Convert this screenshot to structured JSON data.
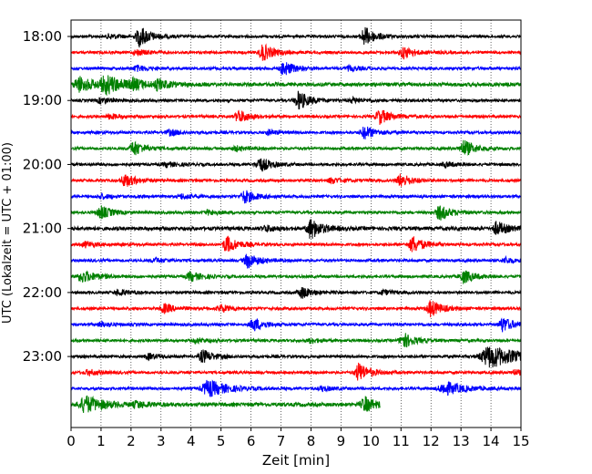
{
  "chart_data": {
    "type": "line",
    "title": "",
    "xlabel": "Zeit  [min]",
    "ylabel": "UTC (Lokalzeit = UTC + 01:00)",
    "xlim": [
      0,
      15
    ],
    "x_ticks": [
      0,
      1,
      2,
      3,
      4,
      5,
      6,
      7,
      8,
      9,
      10,
      11,
      12,
      13,
      14,
      15
    ],
    "x_tick_labels": [
      "0",
      "1",
      "2",
      "3",
      "4",
      "5",
      "6",
      "7",
      "8",
      "9",
      "10",
      "11",
      "12",
      "13",
      "14",
      "15"
    ],
    "y_tick_labels": [
      "18:00",
      "19:00",
      "20:00",
      "21:00",
      "22:00",
      "23:00"
    ],
    "grid": "vertical dotted lines at each minute",
    "row_interval_min": 15,
    "colors": [
      "#000000",
      "#ff0000",
      "#0000ff",
      "#008000"
    ],
    "series": [
      {
        "start": "18:00",
        "color": "#000000",
        "noise": 1.5,
        "events": [
          {
            "t": 2.3,
            "a": 11
          },
          {
            "t": 9.8,
            "a": 10
          },
          {
            "t": 1.3,
            "a": 2.5
          }
        ]
      },
      {
        "start": "18:15",
        "color": "#ff0000",
        "noise": 1.5,
        "events": [
          {
            "t": 6.4,
            "a": 9
          },
          {
            "t": 11.1,
            "a": 6
          },
          {
            "t": 2.2,
            "a": 3
          }
        ]
      },
      {
        "start": "18:30",
        "color": "#0000ff",
        "noise": 1.5,
        "events": [
          {
            "t": 7.1,
            "a": 8
          },
          {
            "t": 2.2,
            "a": 3
          },
          {
            "t": 9.3,
            "a": 2.5
          }
        ]
      },
      {
        "start": "18:45",
        "color": "#008000",
        "noise": 2,
        "events": [
          {
            "t": 0.3,
            "a": 8,
            "w": 0.5
          },
          {
            "t": 1.2,
            "a": 9,
            "w": 0.6
          },
          {
            "t": 2.1,
            "a": 4
          },
          {
            "t": 2.9,
            "a": 5
          }
        ]
      },
      {
        "start": "19:00",
        "color": "#000000",
        "noise": 1.5,
        "events": [
          {
            "t": 7.6,
            "a": 10
          },
          {
            "t": 1.0,
            "a": 3
          },
          {
            "t": 9.4,
            "a": 2.5
          }
        ]
      },
      {
        "start": "19:15",
        "color": "#ff0000",
        "noise": 1.5,
        "events": [
          {
            "t": 5.6,
            "a": 7
          },
          {
            "t": 10.3,
            "a": 8
          },
          {
            "t": 1.3,
            "a": 2.5
          }
        ]
      },
      {
        "start": "19:30",
        "color": "#0000ff",
        "noise": 1.5,
        "events": [
          {
            "t": 9.8,
            "a": 7
          },
          {
            "t": 3.3,
            "a": 3
          },
          {
            "t": 6.6,
            "a": 2.5
          }
        ]
      },
      {
        "start": "19:45",
        "color": "#008000",
        "noise": 1.5,
        "events": [
          {
            "t": 2.1,
            "a": 8
          },
          {
            "t": 13.1,
            "a": 9
          },
          {
            "t": 5.5,
            "a": 2.5
          }
        ]
      },
      {
        "start": "20:00",
        "color": "#000000",
        "noise": 1.5,
        "events": [
          {
            "t": 6.3,
            "a": 8
          },
          {
            "t": 12.5,
            "a": 2.5
          },
          {
            "t": 3.2,
            "a": 2.5
          }
        ]
      },
      {
        "start": "20:15",
        "color": "#ff0000",
        "noise": 1.5,
        "events": [
          {
            "t": 1.8,
            "a": 7
          },
          {
            "t": 11.0,
            "a": 7
          },
          {
            "t": 8.7,
            "a": 3
          }
        ]
      },
      {
        "start": "20:30",
        "color": "#0000ff",
        "noise": 1.5,
        "events": [
          {
            "t": 5.8,
            "a": 7
          },
          {
            "t": 3.7,
            "a": 2.5
          },
          {
            "t": 1.0,
            "a": 2.5
          }
        ]
      },
      {
        "start": "20:45",
        "color": "#008000",
        "noise": 1.5,
        "events": [
          {
            "t": 1.0,
            "a": 7
          },
          {
            "t": 12.3,
            "a": 8
          },
          {
            "t": 4.6,
            "a": 2.5
          }
        ]
      },
      {
        "start": "21:00",
        "color": "#000000",
        "noise": 2,
        "events": [
          {
            "t": 8.0,
            "a": 11
          },
          {
            "t": 14.2,
            "a": 7
          },
          {
            "t": 6.5,
            "a": 3
          }
        ]
      },
      {
        "start": "21:15",
        "color": "#ff0000",
        "noise": 1.5,
        "events": [
          {
            "t": 5.2,
            "a": 9
          },
          {
            "t": 11.4,
            "a": 9
          },
          {
            "t": 0.5,
            "a": 3
          }
        ]
      },
      {
        "start": "21:30",
        "color": "#0000ff",
        "noise": 1.5,
        "events": [
          {
            "t": 5.9,
            "a": 8
          },
          {
            "t": 14.5,
            "a": 3
          },
          {
            "t": 2.8,
            "a": 2.5
          }
        ]
      },
      {
        "start": "21:45",
        "color": "#008000",
        "noise": 1.5,
        "events": [
          {
            "t": 0.4,
            "a": 6,
            "w": 0.5
          },
          {
            "t": 4.0,
            "a": 5
          },
          {
            "t": 13.1,
            "a": 7
          }
        ]
      },
      {
        "start": "22:00",
        "color": "#000000",
        "noise": 1.5,
        "events": [
          {
            "t": 7.7,
            "a": 6
          },
          {
            "t": 1.6,
            "a": 3
          },
          {
            "t": 10.4,
            "a": 2.5
          }
        ]
      },
      {
        "start": "22:15",
        "color": "#ff0000",
        "noise": 1.5,
        "events": [
          {
            "t": 12.0,
            "a": 9
          },
          {
            "t": 3.1,
            "a": 5
          },
          {
            "t": 5.0,
            "a": 4
          }
        ]
      },
      {
        "start": "22:30",
        "color": "#0000ff",
        "noise": 1.5,
        "events": [
          {
            "t": 6.1,
            "a": 7
          },
          {
            "t": 14.4,
            "a": 8
          },
          {
            "t": 1.0,
            "a": 2.5
          }
        ]
      },
      {
        "start": "22:45",
        "color": "#008000",
        "noise": 1.5,
        "events": [
          {
            "t": 11.1,
            "a": 8
          },
          {
            "t": 4.2,
            "a": 2.5
          },
          {
            "t": 8.0,
            "a": 2.5
          }
        ]
      },
      {
        "start": "23:00",
        "color": "#000000",
        "noise": 1.5,
        "events": [
          {
            "t": 4.4,
            "a": 7
          },
          {
            "t": 14.0,
            "a": 12,
            "w": 0.9
          },
          {
            "t": 2.6,
            "a": 3
          }
        ]
      },
      {
        "start": "23:15",
        "color": "#ff0000",
        "noise": 1.5,
        "events": [
          {
            "t": 9.6,
            "a": 10
          },
          {
            "t": 0.6,
            "a": 3
          },
          {
            "t": 14.8,
            "a": 2.5
          }
        ]
      },
      {
        "start": "23:30",
        "color": "#0000ff",
        "noise": 1.5,
        "events": [
          {
            "t": 4.6,
            "a": 9,
            "w": 0.6
          },
          {
            "t": 12.5,
            "a": 7,
            "w": 0.6
          },
          {
            "t": 8.4,
            "a": 2.5
          }
        ]
      },
      {
        "start": "23:45",
        "color": "#008000",
        "noise": 2,
        "events": [
          {
            "t": 0.5,
            "a": 9,
            "w": 0.6
          },
          {
            "t": 9.8,
            "a": 8
          },
          {
            "t": 2.2,
            "a": 3
          }
        ],
        "end": 10.3
      }
    ]
  }
}
